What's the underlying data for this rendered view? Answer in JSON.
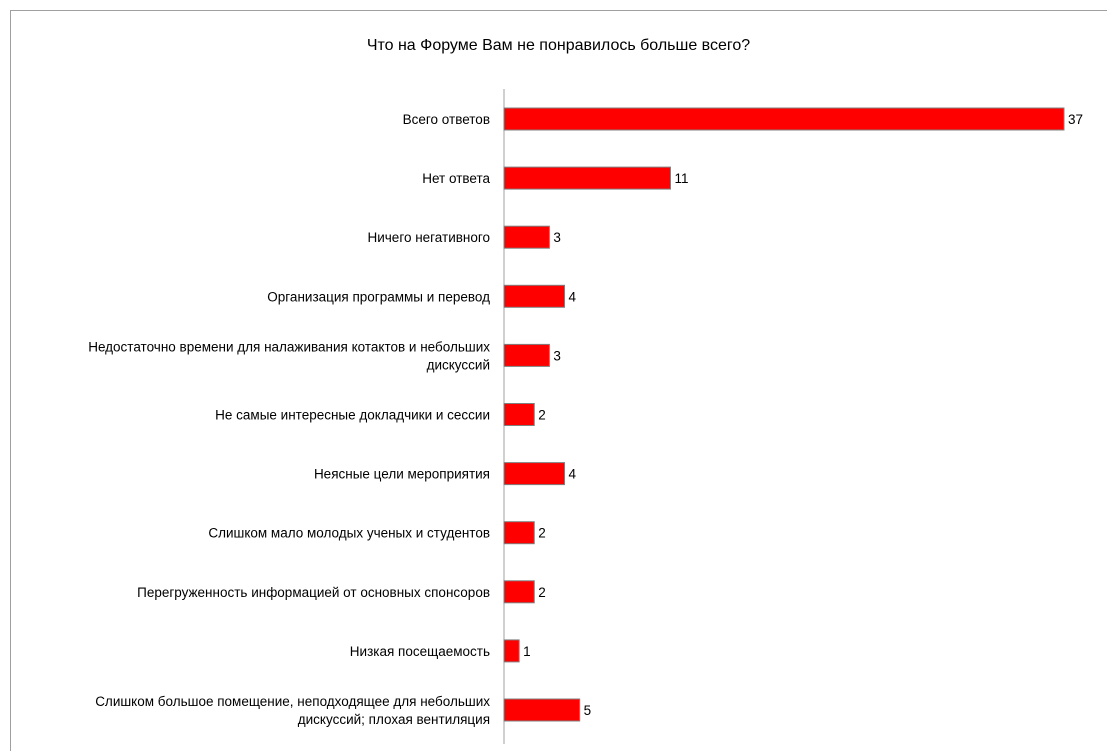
{
  "chart_data": {
    "type": "bar",
    "orientation": "horizontal",
    "title": "Что на Форуме Вам не понравилось больше всего?",
    "categories": [
      [
        "Всего ответов"
      ],
      [
        "Нет ответа"
      ],
      [
        "Ничего негативного"
      ],
      [
        "Организация программы и перевод"
      ],
      [
        "Недостаточно времени для налаживания котактов и небольших",
        "дискуссий"
      ],
      [
        "Не самые интересные докладчики и сессии"
      ],
      [
        "Неясные цели мероприятия"
      ],
      [
        "Слишком мало молодых ученых и студентов"
      ],
      [
        "Перегруженность информацией от основных спонсоров"
      ],
      [
        "Низкая посещаемость"
      ],
      [
        "Слишком большое помещение, неподходящее для небольших",
        "дискуссий; плохая вентиляция"
      ]
    ],
    "values": [
      37,
      11,
      3,
      4,
      3,
      2,
      4,
      2,
      2,
      1,
      5
    ],
    "xlim": [
      0,
      37
    ],
    "grid": false,
    "legend": "none",
    "colors": {
      "bar_fill": "#ff0000",
      "bar_stroke": "#808080",
      "axis": "#a0a0a0"
    }
  }
}
